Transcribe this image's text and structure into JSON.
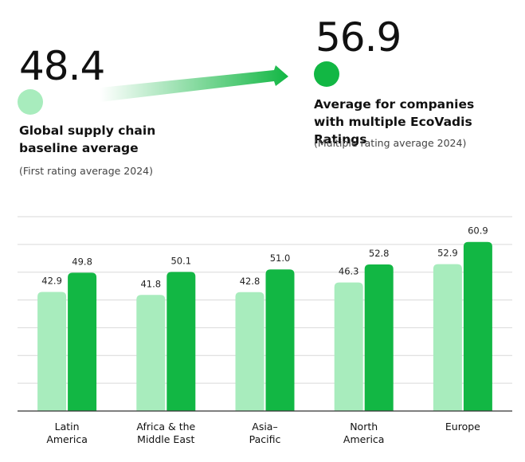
{
  "header": {
    "first_value": "48.4",
    "first_label_line1": "Global supply chain",
    "first_label_line2": "baseline average",
    "first_sub": "(First rating average 2024)",
    "multi_value": "56.9",
    "multi_label_line1": "Average for companies",
    "multi_label_line2": "with multiple EcoVadis Ratings",
    "multi_sub": "(Multiple rating average 2024)"
  },
  "colors": {
    "first": "#a8ecbd",
    "multi": "#12b744",
    "grid": "#d9d9d9",
    "arrow_start": "#ffffff",
    "arrow_end": "#12b744"
  },
  "chart_data": {
    "type": "bar",
    "categories": [
      [
        "Latin",
        "America"
      ],
      [
        "Africa & the",
        "Middle East"
      ],
      [
        "Asia–",
        "Pacific"
      ],
      [
        "North",
        "America"
      ],
      [
        "Europe"
      ]
    ],
    "series": [
      {
        "name": "First rating average 2024",
        "values": [
          42.9,
          41.8,
          42.8,
          46.3,
          52.9
        ],
        "labels": [
          "42.9",
          "41.8",
          "42.8",
          "46.3",
          "52.9"
        ]
      },
      {
        "name": "Multiple rating average 2024",
        "values": [
          49.8,
          50.1,
          51.0,
          52.8,
          60.9
        ],
        "labels": [
          "49.8",
          "50.1",
          "51.0",
          "52.8",
          "60.9"
        ]
      }
    ],
    "ylim": [
      0,
      70
    ],
    "grid": true,
    "title": "",
    "xlabel": "",
    "ylabel": ""
  }
}
